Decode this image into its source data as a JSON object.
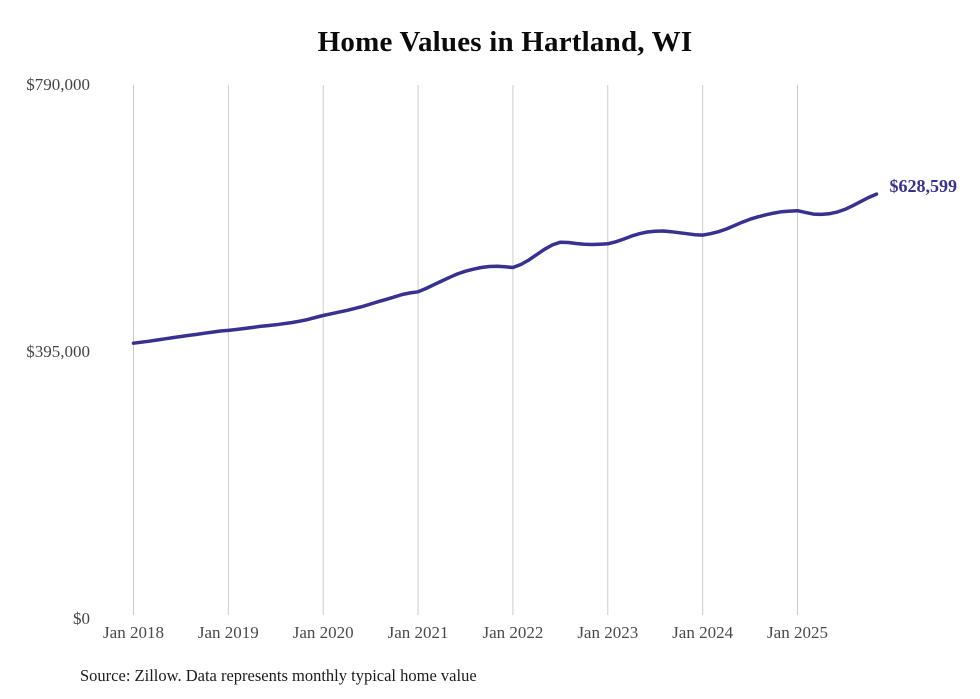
{
  "title": "Home Values in Hartland, WI",
  "source_note": "Source: Zillow. Data represents monthly typical home value",
  "colors": {
    "line": "#37318f",
    "grid": "#cccccc",
    "axis_text": "#4a4a4a",
    "title_text": "#0b0b0b",
    "source_text": "#1c1c1c",
    "background": "#ffffff"
  },
  "chart_data": {
    "type": "line",
    "title": "Home Values in Hartland, WI",
    "xlabel": "",
    "ylabel": "",
    "x_tick_labels": [
      "Jan 2018",
      "Jan 2019",
      "Jan 2020",
      "Jan 2021",
      "Jan 2022",
      "Jan 2023",
      "Jan 2024",
      "Jan 2025"
    ],
    "y_ticks": [
      {
        "label": "$0",
        "value": 0
      },
      {
        "label": "$395,000",
        "value": 395000
      },
      {
        "label": "$790,000",
        "value": 790000
      }
    ],
    "ylim": [
      0,
      790000
    ],
    "grid": "vertical-only",
    "legend": "none",
    "end_label": "$628,599",
    "final_value": 628599,
    "series": [
      {
        "name": "Monthly typical home value",
        "start": "Jan 2018",
        "end": "Nov 2025",
        "interval": "monthly",
        "values": [
          408000,
          409500,
          411000,
          412800,
          414500,
          416300,
          418000,
          419500,
          421000,
          422800,
          424500,
          426000,
          427000,
          428300,
          429800,
          431200,
          432800,
          434000,
          435200,
          436800,
          438500,
          440500,
          443000,
          446000,
          449000,
          451500,
          454000,
          456500,
          459500,
          462500,
          466000,
          469500,
          473000,
          476500,
          480000,
          482500,
          484000,
          489000,
          494500,
          500000,
          505500,
          510500,
          514500,
          517500,
          520000,
          521500,
          522000,
          521000,
          520000,
          524500,
          531000,
          539000,
          547000,
          553500,
          557500,
          557000,
          555500,
          554500,
          554000,
          554500,
          555000,
          558000,
          562000,
          566500,
          570000,
          572500,
          573500,
          574000,
          573000,
          571500,
          570000,
          568500,
          568000,
          570000,
          573000,
          577000,
          582000,
          587000,
          591500,
          595000,
          598000,
          600500,
          602500,
          603500,
          604000,
          601500,
          599000,
          598500,
          599500,
          602000,
          606000,
          611500,
          617500,
          623500,
          628599
        ]
      }
    ]
  }
}
